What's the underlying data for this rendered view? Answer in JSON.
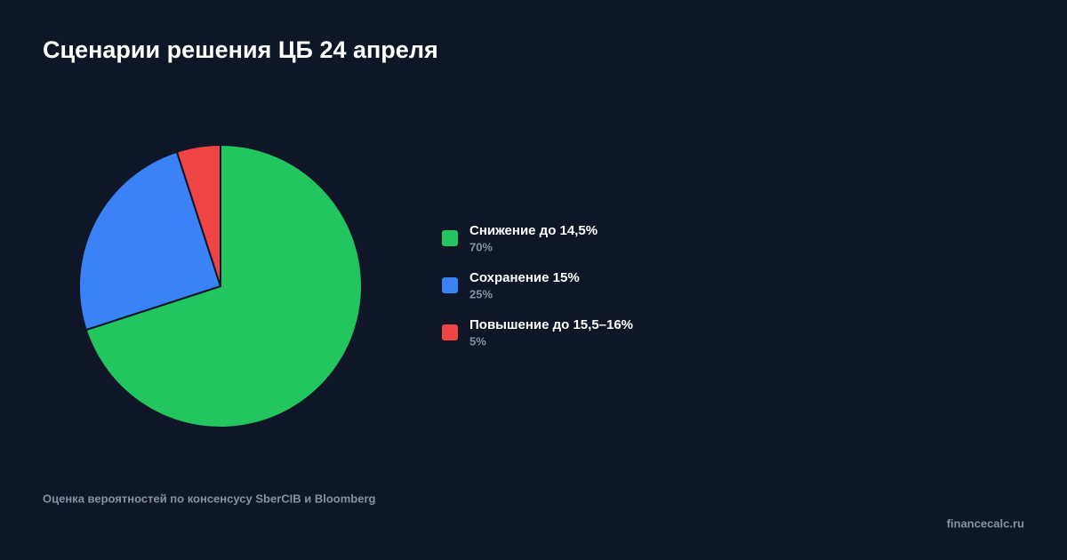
{
  "chart_data": {
    "type": "pie",
    "title": "Сценарии решения ЦБ 24 апреля",
    "categories": [
      "Снижение до 14,5%",
      "Сохранение 15%",
      "Повышение до 15,5–16%"
    ],
    "values": [
      70,
      25,
      5
    ],
    "value_labels": [
      "70%",
      "25%",
      "5%"
    ],
    "colors": [
      "#22c55e",
      "#3b82f6",
      "#ef4444"
    ],
    "legend": "right",
    "caption": "Оценка вероятностей по консенсусу SberCIB и Bloomberg",
    "watermark": "financecalc.ru"
  }
}
